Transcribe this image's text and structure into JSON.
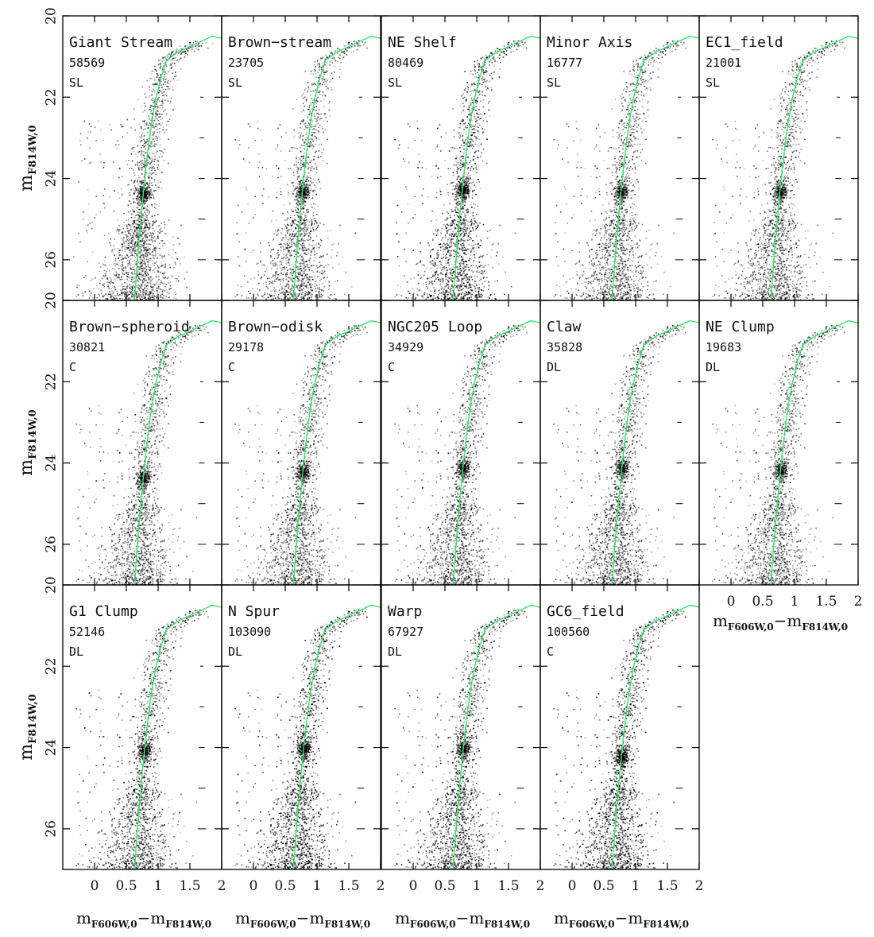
{
  "figure": {
    "ylabel_main": "m",
    "ylabel_sub": "F814W,0",
    "xlabel_a": "m",
    "xlabel_a_sub": "F606W,0",
    "xlabel_sep": "−",
    "xlabel_b": "m",
    "xlabel_b_sub": "F814W,0"
  },
  "chart_data": {
    "type": "scatter",
    "description_kind": "grid of color-magnitude diagrams (Hess diagrams) with isochrone overlay",
    "xlim": [
      -0.5,
      2.0
    ],
    "ylim": [
      27.0,
      20.0
    ],
    "x_ticks": [
      0,
      0.5,
      1,
      1.5,
      2
    ],
    "x_tick_labels": [
      "0",
      "0.5",
      "1",
      "1.5",
      "2"
    ],
    "y_ticks": [
      20,
      22,
      24,
      26
    ],
    "y_tick_labels": [
      "20",
      "22",
      "24",
      "26"
    ],
    "xlabel": "mF606W,0−mF814W,0",
    "ylabel": "mF814W,0",
    "isochrone_color": "#2ee86a",
    "isochrone": {
      "x": [
        0.63,
        0.66,
        0.7,
        0.74,
        0.79,
        0.84,
        0.9,
        0.97,
        1.05,
        1.13,
        1.3,
        1.85,
        2.0
      ],
      "y": [
        27.0,
        26.3,
        25.5,
        24.8,
        24.0,
        23.3,
        22.6,
        22.0,
        21.5,
        21.1,
        20.9,
        20.5,
        20.55
      ]
    },
    "panels": [
      {
        "name": "Giant Stream",
        "count": "58569",
        "code": "SL",
        "rc_mag": 24.35
      },
      {
        "name": "Brown−stream",
        "count": "23705",
        "code": "SL",
        "rc_mag": 24.3
      },
      {
        "name": "NE Shelf",
        "count": "80469",
        "code": "SL",
        "rc_mag": 24.25
      },
      {
        "name": "Minor Axis",
        "count": "16777",
        "code": "SL",
        "rc_mag": 24.3
      },
      {
        "name": "EC1_field",
        "count": "21001",
        "code": "SL",
        "rc_mag": 24.3
      },
      {
        "name": "Brown−spheroid",
        "count": "30821",
        "code": "C",
        "rc_mag": 24.35
      },
      {
        "name": "Brown−odisk",
        "count": "29178",
        "code": "C",
        "rc_mag": 24.2
      },
      {
        "name": "NGC205 Loop",
        "count": "34929",
        "code": "C",
        "rc_mag": 24.1
      },
      {
        "name": "Claw",
        "count": "35828",
        "code": "DL",
        "rc_mag": 24.1
      },
      {
        "name": "NE Clump",
        "count": "19683",
        "code": "DL",
        "rc_mag": 24.15
      },
      {
        "name": "G1 Clump",
        "count": "52146",
        "code": "DL",
        "rc_mag": 24.05
      },
      {
        "name": "N Spur",
        "count": "103090",
        "code": "DL",
        "rc_mag": 24.0
      },
      {
        "name": "Warp",
        "count": "67927",
        "code": "DL",
        "rc_mag": 24.0
      },
      {
        "name": "GC6_field",
        "count": "100560",
        "code": "C",
        "rc_mag": 24.2
      }
    ]
  }
}
